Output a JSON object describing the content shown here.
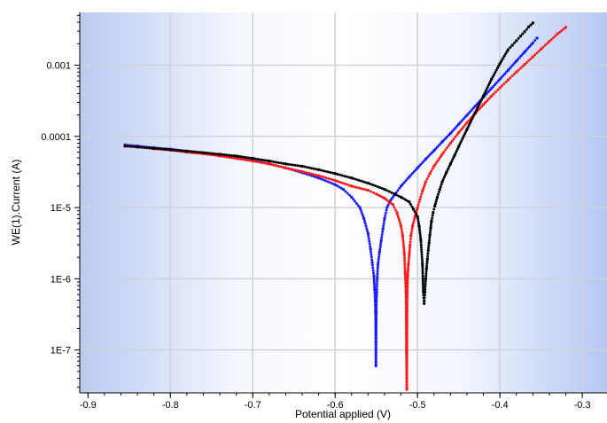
{
  "chart_data": {
    "type": "scatter",
    "xlabel": "Potential applied (V)",
    "ylabel": "WE(1).Current (A)",
    "xlim": [
      -0.91,
      -0.27
    ],
    "ylim": [
      2.5e-08,
      0.0055
    ],
    "y_scale": "log",
    "grid": true,
    "legend": "none",
    "x_ticks": [
      {
        "value": -0.9,
        "label": "-0.9"
      },
      {
        "value": -0.8,
        "label": "-0.8"
      },
      {
        "value": -0.7,
        "label": "-0.7"
      },
      {
        "value": -0.6,
        "label": "-0.6"
      },
      {
        "value": -0.5,
        "label": "-0.5"
      },
      {
        "value": -0.4,
        "label": "-0.4"
      },
      {
        "value": -0.3,
        "label": "-0.3"
      }
    ],
    "y_ticks": [
      {
        "value": 1e-07,
        "label": "1E-7"
      },
      {
        "value": 1e-06,
        "label": "1E-6"
      },
      {
        "value": 1e-05,
        "label": "1E-5"
      },
      {
        "value": 0.0001,
        "label": "0.0001"
      },
      {
        "value": 0.001,
        "label": "0.001"
      }
    ],
    "series": [
      {
        "color": "#1a1aff",
        "x": [
          -0.855,
          -0.84,
          -0.82,
          -0.8,
          -0.78,
          -0.76,
          -0.74,
          -0.72,
          -0.7,
          -0.68,
          -0.66,
          -0.64,
          -0.62,
          -0.6,
          -0.59,
          -0.58,
          -0.57,
          -0.565,
          -0.56,
          -0.557,
          -0.555,
          -0.553,
          -0.552,
          -0.551,
          -0.5505,
          -0.55,
          -0.5495,
          -0.549,
          -0.548,
          -0.546,
          -0.544,
          -0.542,
          -0.54,
          -0.537,
          -0.533,
          -0.528,
          -0.52,
          -0.51,
          -0.5,
          -0.49,
          -0.48,
          -0.47,
          -0.46,
          -0.45,
          -0.44,
          -0.43,
          -0.42,
          -0.41,
          -0.4,
          -0.39,
          -0.38,
          -0.37,
          -0.36,
          -0.355
        ],
        "y": [
          7.6e-05,
          7.3e-05,
          6.9e-05,
          6.6e-05,
          6.2e-05,
          5.8e-05,
          5.4e-05,
          5e-05,
          4.6e-05,
          4.1e-05,
          3.6e-05,
          3.1e-05,
          2.6e-05,
          2.1e-05,
          1.8e-05,
          1.4e-05,
          1e-05,
          7e-06,
          4.3e-06,
          2.6e-06,
          1.7e-06,
          1.1e-06,
          7e-07,
          3.4e-07,
          6e-08,
          3.4e-07,
          6.5e-07,
          1e-06,
          1.6e-06,
          2.4e-06,
          3.5e-06,
          5e-06,
          7e-06,
          1e-05,
          1.25e-05,
          1.5e-05,
          2e-05,
          2.7e-05,
          3.6e-05,
          4.8e-05,
          6.3e-05,
          8.4e-05,
          0.00011,
          0.000148,
          0.000198,
          0.000265,
          0.000355,
          0.000475,
          0.000635,
          0.00085,
          0.00114,
          0.00153,
          0.00205,
          0.0024
        ]
      },
      {
        "color": "#ff1a1a",
        "x": [
          -0.855,
          -0.84,
          -0.82,
          -0.8,
          -0.78,
          -0.76,
          -0.74,
          -0.72,
          -0.7,
          -0.68,
          -0.66,
          -0.64,
          -0.62,
          -0.6,
          -0.58,
          -0.56,
          -0.55,
          -0.54,
          -0.53,
          -0.525,
          -0.52,
          -0.518,
          -0.516,
          -0.515,
          -0.514,
          -0.5135,
          -0.513,
          -0.5125,
          -0.512,
          -0.511,
          -0.51,
          -0.509,
          -0.508,
          -0.506,
          -0.503,
          -0.5,
          -0.497,
          -0.494,
          -0.49,
          -0.485,
          -0.48,
          -0.47,
          -0.46,
          -0.45,
          -0.44,
          -0.43,
          -0.42,
          -0.41,
          -0.4,
          -0.39,
          -0.38,
          -0.37,
          -0.36,
          -0.35,
          -0.34,
          -0.33,
          -0.32
        ],
        "y": [
          7.4e-05,
          7.1e-05,
          6.7e-05,
          6.4e-05,
          6e-05,
          5.7e-05,
          5.3e-05,
          4.9e-05,
          4.5e-05,
          4.1e-05,
          3.6e-05,
          3.2e-05,
          2.8e-05,
          2.4e-05,
          2e-05,
          1.75e-05,
          1.55e-05,
          1.35e-05,
          1.1e-05,
          8.5e-06,
          5.5e-06,
          4e-06,
          2.3e-06,
          1.2e-06,
          6.5e-07,
          9.5e-08,
          2.8e-08,
          6.5e-07,
          1.1e-06,
          1.6e-06,
          2.2e-06,
          3e-06,
          4e-06,
          5.5e-06,
          7.5e-06,
          1e-05,
          1.3e-05,
          1.7e-05,
          2.3e-05,
          3e-05,
          3.8e-05,
          5.6e-05,
          8e-05,
          0.000113,
          0.000155,
          0.00021,
          0.00028,
          0.00037,
          0.00048,
          0.00062,
          0.0008,
          0.00102,
          0.00131,
          0.00168,
          0.00215,
          0.00275,
          0.0034
        ]
      },
      {
        "color": "#000000",
        "x": [
          -0.855,
          -0.84,
          -0.82,
          -0.8,
          -0.78,
          -0.76,
          -0.74,
          -0.72,
          -0.7,
          -0.68,
          -0.66,
          -0.64,
          -0.62,
          -0.6,
          -0.58,
          -0.56,
          -0.54,
          -0.52,
          -0.51,
          -0.505,
          -0.5,
          -0.498,
          -0.496,
          -0.494,
          -0.493,
          -0.492,
          -0.491,
          -0.49,
          -0.489,
          -0.488,
          -0.487,
          -0.486,
          -0.485,
          -0.484,
          -0.483,
          -0.481,
          -0.479,
          -0.476,
          -0.473,
          -0.47,
          -0.465,
          -0.46,
          -0.455,
          -0.45,
          -0.44,
          -0.43,
          -0.42,
          -0.41,
          -0.4,
          -0.39,
          -0.385,
          -0.38,
          -0.375,
          -0.37,
          -0.365,
          -0.36
        ],
        "y": [
          7.3e-05,
          7.1e-05,
          6.8e-05,
          6.5e-05,
          6.2e-05,
          5.9e-05,
          5.6e-05,
          5.3e-05,
          4.9e-05,
          4.5e-05,
          4.1e-05,
          3.8e-05,
          3.4e-05,
          3e-05,
          2.6e-05,
          2.2e-05,
          1.8e-05,
          1.4e-05,
          1.2e-05,
          9.5e-06,
          7.5e-06,
          5.5e-06,
          3.5e-06,
          1.6e-06,
          6.5e-07,
          4.5e-07,
          6.5e-07,
          1e-06,
          1.4e-06,
          1.9e-06,
          2.5e-06,
          3.2e-06,
          4.1e-06,
          5.2e-06,
          6.5e-06,
          8.5e-06,
          1.05e-05,
          1.4e-05,
          1.8e-05,
          2.3e-05,
          3.1e-05,
          4.1e-05,
          5.4e-05,
          7.2e-05,
          0.000125,
          0.000215,
          0.00037,
          0.00064,
          0.00105,
          0.00165,
          0.0019,
          0.0022,
          0.00255,
          0.00295,
          0.00345,
          0.0039
        ]
      }
    ]
  }
}
